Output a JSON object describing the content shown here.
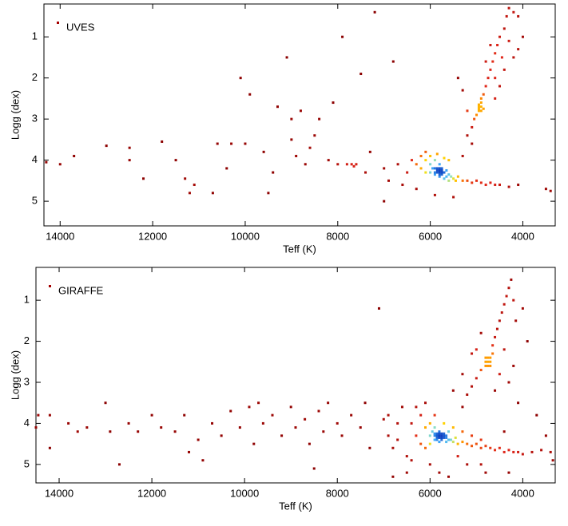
{
  "chart_data": [
    {
      "type": "scatter",
      "xlabel": "Teff (K)",
      "ylabel": "Logg (dex)",
      "xlim": [
        14350,
        3300
      ],
      "ylim": [
        5.6,
        0.2
      ],
      "xticks": [
        14000,
        12000,
        10000,
        8000,
        6000,
        4000
      ],
      "yticks": [
        1,
        2,
        3,
        4,
        5
      ],
      "legend": "upper left",
      "colormap": [
        "#8b0000",
        "#e0261a",
        "#ff8c00",
        "#ffe000",
        "#8fe0c0",
        "#40b0ff",
        "#1040c0"
      ],
      "series": [
        {
          "name": "UVES",
          "color": "#a50000",
          "x": [
            14300,
            14000,
            13700,
            13000,
            12500,
            12500,
            12200,
            11800,
            11500,
            11300,
            11200,
            11100,
            10700,
            10600,
            10400,
            10300,
            10000,
            10100,
            9900,
            9600,
            9500,
            9400,
            9300,
            9100,
            9000,
            9000,
            8900,
            8800,
            8700,
            8600,
            8500,
            8400,
            8200,
            8000,
            8100,
            7900,
            7800,
            7600,
            7500,
            7400,
            7300,
            7200,
            7000,
            7000,
            6900,
            6800,
            6700,
            7700,
            7650,
            6500,
            6400,
            6300,
            6200,
            6200,
            6100,
            6100,
            6000,
            6000,
            6000,
            5950,
            5900,
            5900,
            5900,
            5850,
            5800,
            5800,
            5800,
            5750,
            5750,
            5700,
            5700,
            5650,
            5650,
            5600,
            5600,
            5550,
            5500,
            5450,
            5400,
            5300,
            5200,
            5100,
            5000,
            4900,
            4800,
            4700,
            4600,
            4500,
            4300,
            4100,
            3500,
            3400,
            6600,
            6300,
            5500,
            5900,
            6100,
            5850,
            5600,
            5700,
            5850,
            5800,
            5750,
            5850,
            5900,
            5800,
            5200,
            5100,
            5050,
            5000,
            4950,
            4900,
            4900,
            4950,
            4850,
            4950,
            4900,
            4850,
            4800,
            4750,
            4700,
            4650,
            4600,
            4550,
            4500,
            4400,
            4350,
            4300,
            4200,
            4100,
            4000,
            4200,
            4100,
            4400,
            4500,
            4600,
            5300,
            5400,
            5200,
            4700,
            4800,
            4600,
            4450,
            4300,
            5100,
            5300,
            5750,
            5800,
            4950,
            4900
          ],
          "y": [
            4.05,
            4.1,
            3.9,
            3.65,
            3.7,
            4.0,
            4.45,
            3.55,
            4.0,
            4.45,
            4.8,
            4.6,
            4.8,
            3.6,
            4.2,
            3.6,
            3.6,
            2.0,
            2.4,
            3.8,
            4.8,
            4.3,
            2.7,
            1.5,
            3.0,
            3.5,
            3.9,
            2.8,
            4.1,
            3.7,
            3.4,
            3.0,
            4.0,
            4.1,
            2.6,
            1.0,
            4.1,
            4.1,
            1.9,
            4.3,
            3.8,
            0.4,
            4.2,
            5.0,
            4.5,
            1.6,
            4.1,
            4.1,
            4.15,
            4.3,
            4.0,
            4.1,
            3.9,
            4.2,
            4.0,
            4.3,
            3.9,
            4.1,
            4.3,
            4.2,
            4.0,
            4.2,
            4.35,
            4.25,
            4.1,
            4.3,
            4.4,
            4.2,
            4.35,
            4.3,
            4.45,
            4.25,
            4.4,
            4.35,
            4.5,
            4.4,
            4.45,
            4.5,
            4.4,
            4.5,
            4.5,
            4.55,
            4.5,
            4.55,
            4.6,
            4.55,
            4.6,
            4.6,
            4.65,
            4.6,
            4.7,
            4.75,
            4.6,
            4.7,
            4.9,
            4.85,
            3.8,
            3.85,
            4.0,
            3.95,
            4.3,
            4.35,
            4.3,
            4.2,
            4.3,
            4.25,
            3.4,
            3.2,
            3.0,
            2.9,
            2.8,
            2.7,
            2.6,
            2.65,
            2.75,
            2.7,
            2.5,
            2.4,
            2.2,
            2.0,
            1.8,
            1.6,
            1.4,
            1.2,
            1.0,
            0.8,
            0.5,
            0.3,
            0.4,
            0.5,
            1.0,
            1.5,
            1.3,
            1.8,
            2.2,
            2.5,
            2.3,
            2.0,
            2.8,
            1.2,
            1.6,
            2.0,
            1.5,
            1.1,
            3.6,
            3.9,
            4.25,
            4.2,
            2.75,
            2.8
          ]
        }
      ]
    },
    {
      "type": "scatter",
      "xlabel": "Teff (K)",
      "ylabel": "Logg (dex)",
      "xlim": [
        14500,
        3300
      ],
      "ylim": [
        5.45,
        0.2
      ],
      "xticks": [
        14000,
        12000,
        10000,
        8000,
        6000,
        4000
      ],
      "yticks": [
        1,
        2,
        3,
        4,
        5
      ],
      "legend": "upper left",
      "colormap": [
        "#8b0000",
        "#e0261a",
        "#ff8c00",
        "#ffe000",
        "#8fe0c0",
        "#40b0ff",
        "#1040c0"
      ],
      "series": [
        {
          "name": "GIRAFFE",
          "color": "#a50000",
          "x": [
            14450,
            14500,
            14200,
            14200,
            13800,
            13600,
            13400,
            13000,
            12900,
            12700,
            12500,
            12300,
            12000,
            11800,
            11500,
            11300,
            11000,
            10900,
            10700,
            10500,
            10300,
            10100,
            9900,
            9800,
            9600,
            9400,
            9200,
            9000,
            8900,
            8700,
            8600,
            8400,
            8300,
            8200,
            8000,
            7900,
            7700,
            7500,
            7400,
            7300,
            7100,
            7000,
            6900,
            6800,
            6700,
            8500,
            9700,
            11200,
            6600,
            6500,
            6400,
            6300,
            6200,
            6200,
            6100,
            6100,
            6000,
            6000,
            6000,
            5950,
            5900,
            5900,
            5900,
            5850,
            5800,
            5800,
            5800,
            5750,
            5750,
            5700,
            5700,
            5650,
            5650,
            5600,
            5600,
            5550,
            5500,
            5450,
            5400,
            5300,
            5200,
            5100,
            5000,
            4900,
            4800,
            4700,
            4600,
            4500,
            4400,
            4300,
            4200,
            4100,
            4000,
            3800,
            3600,
            3400,
            6300,
            6100,
            5900,
            5700,
            5500,
            5300,
            5100,
            4900,
            6500,
            6000,
            5600,
            5200,
            4800,
            4400,
            5850,
            5800,
            5750,
            5850,
            5800,
            5900,
            5700,
            5750,
            5850,
            5650,
            5300,
            5200,
            5100,
            5000,
            4900,
            4800,
            4750,
            4700,
            4800,
            4750,
            4700,
            4750,
            4800,
            4700,
            4650,
            4650,
            4600,
            4550,
            4500,
            4450,
            4400,
            4350,
            4300,
            4250,
            4200,
            4150,
            4000,
            3900,
            4900,
            5100,
            5300,
            5500,
            4500,
            4300,
            4100,
            3700,
            5000,
            4600,
            4400,
            4200,
            6700,
            6800,
            6900,
            6400,
            5800,
            5400,
            4900,
            4300,
            3500,
            3350
          ],
          "y": [
            3.8,
            4.1,
            3.8,
            4.6,
            4.0,
            4.2,
            4.1,
            3.5,
            4.2,
            5.0,
            4.0,
            4.2,
            3.8,
            4.1,
            4.2,
            3.8,
            4.4,
            4.9,
            4.0,
            4.3,
            3.7,
            4.1,
            3.6,
            4.5,
            4.0,
            3.8,
            4.3,
            3.6,
            4.1,
            3.9,
            4.5,
            3.7,
            4.2,
            3.5,
            4.0,
            4.3,
            3.8,
            4.1,
            3.5,
            4.6,
            1.2,
            3.9,
            4.3,
            5.3,
            4.0,
            5.1,
            3.5,
            4.7,
            3.6,
            4.8,
            4.0,
            4.3,
            3.8,
            4.5,
            4.1,
            4.6,
            4.0,
            4.3,
            4.5,
            4.2,
            4.1,
            4.3,
            4.4,
            4.25,
            4.2,
            4.35,
            4.45,
            4.3,
            4.4,
            4.25,
            4.35,
            4.3,
            4.45,
            4.4,
            4.2,
            4.4,
            4.45,
            4.35,
            4.5,
            4.45,
            4.5,
            4.55,
            4.5,
            4.6,
            4.55,
            4.6,
            4.65,
            4.6,
            4.7,
            4.65,
            4.7,
            4.7,
            4.75,
            4.7,
            4.65,
            4.7,
            3.6,
            3.5,
            3.8,
            4.0,
            4.1,
            4.2,
            4.3,
            4.4,
            5.2,
            5.0,
            5.3,
            5.0,
            5.2,
            4.2,
            4.3,
            4.3,
            4.35,
            4.35,
            4.25,
            4.25,
            4.3,
            4.25,
            4.4,
            4.35,
            3.6,
            3.3,
            3.1,
            2.9,
            2.7,
            2.6,
            2.5,
            2.4,
            2.5,
            2.6,
            2.5,
            2.4,
            2.4,
            2.6,
            2.3,
            2.1,
            1.9,
            1.7,
            1.5,
            1.3,
            1.1,
            0.9,
            0.7,
            0.5,
            1.0,
            1.5,
            1.2,
            2.0,
            1.8,
            2.3,
            2.8,
            3.2,
            2.8,
            3.0,
            3.5,
            3.8,
            2.2,
            3.2,
            2.2,
            2.6,
            4.4,
            4.6,
            3.8,
            4.9,
            5.2,
            4.8,
            5.0,
            5.2,
            4.3,
            4.9
          ]
        }
      ]
    }
  ]
}
